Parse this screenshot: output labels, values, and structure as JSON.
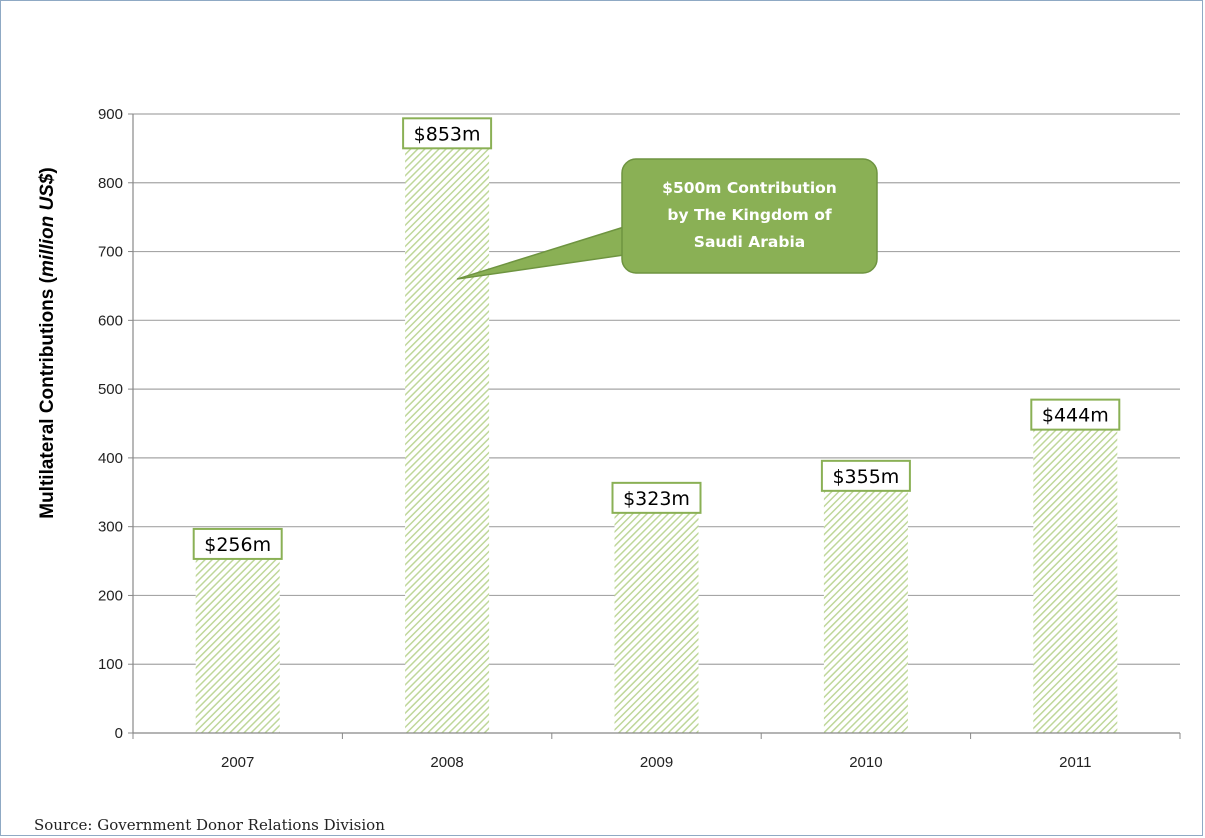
{
  "chart_data": {
    "type": "bar",
    "categories": [
      "2007",
      "2008",
      "2009",
      "2010",
      "2011"
    ],
    "values": [
      256,
      853,
      323,
      355,
      444
    ],
    "data_labels": [
      "$256m",
      "$853m",
      "$323m",
      "$355m",
      "$444m"
    ],
    "title": "",
    "xlabel": "",
    "ylabel_main": "Multilateral Contributions (",
    "ylabel_italic": "million US$",
    "ylabel_end": ")",
    "yticks": [
      0,
      100,
      200,
      300,
      400,
      500,
      600,
      700,
      800,
      900
    ],
    "ylim": [
      0,
      900
    ],
    "grid": true,
    "annotation": {
      "lines": [
        "$500m Contribution",
        "by The Kingdom of",
        "Saudi Arabia"
      ],
      "target_category": "2008",
      "target_value": 660
    },
    "colors": {
      "bar_stripe": "#bfd79a",
      "label_border": "#8ab055",
      "callout_fill": "#8ab055",
      "callout_border": "#6e9440"
    }
  },
  "source": "Source: Government Donor Relations Division"
}
